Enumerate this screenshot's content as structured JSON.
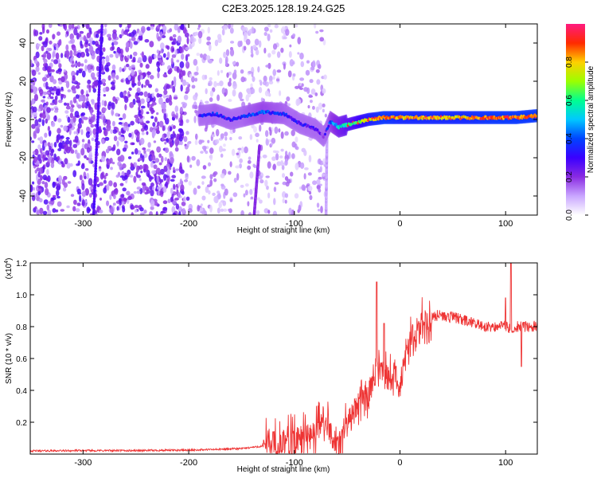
{
  "title": "C2E3.2025.128.19.24.G25",
  "colors": {
    "snr_line": "#ee3333",
    "colormap": [
      "#ffffff",
      "#c9a6ff",
      "#8a2be2",
      "#3a00ff",
      "#0044ff",
      "#00c8ff",
      "#00ff90",
      "#9cff00",
      "#ffd000",
      "#ff2a00",
      "#ff1a80"
    ]
  },
  "chart_data": [
    {
      "type": "heatmap",
      "name": "spectrogram",
      "title": "C2E3.2025.128.19.24.G25",
      "xlabel": "Height of straight line (km)",
      "ylabel": "Frequency (Hz)",
      "xlim": [
        -350,
        130
      ],
      "ylim": [
        -50,
        50
      ],
      "xticks": [
        -300,
        -200,
        -100,
        0,
        100
      ],
      "xtick_labels": [
        "-300",
        "-200",
        "-100",
        "0",
        "100"
      ],
      "yticks": [
        -40,
        -20,
        0,
        20,
        40
      ],
      "ytick_labels": [
        "-40",
        "-20",
        "0",
        "20",
        "40"
      ],
      "colorbar": {
        "label": "Normalized spectral amplitude",
        "range": [
          0,
          1
        ],
        "ticks": [
          0.0,
          0.2,
          0.4,
          0.6,
          0.8
        ],
        "tick_labels": [
          "0.0",
          "0.2",
          "0.4",
          "0.6",
          "0.8"
        ]
      },
      "noise_region_end_km": -200,
      "sparse_noise_end_km": -70,
      "streaks": [
        {
          "x_start": -290,
          "x_end": -282,
          "y_start": -50,
          "y_end": 50,
          "amp": 0.25
        },
        {
          "x_start": -138,
          "x_end": -133,
          "y_start": -50,
          "y_end": -14,
          "amp": 0.18
        },
        {
          "x_start": -70,
          "x_end": -69,
          "y_start": -50,
          "y_end": -5,
          "amp": 0.08
        }
      ],
      "ridge": [
        {
          "x": -190,
          "f": 2,
          "amp": 0.3
        },
        {
          "x": -175,
          "f": 3,
          "amp": 0.35
        },
        {
          "x": -160,
          "f": 0,
          "amp": 0.3
        },
        {
          "x": -145,
          "f": 2,
          "amp": 0.35
        },
        {
          "x": -130,
          "f": 4,
          "amp": 0.4
        },
        {
          "x": -110,
          "f": 3,
          "amp": 0.35
        },
        {
          "x": -95,
          "f": -2,
          "amp": 0.3
        },
        {
          "x": -80,
          "f": -5,
          "amp": 0.25
        },
        {
          "x": -72,
          "f": -9,
          "amp": 0.22
        },
        {
          "x": -66,
          "f": -1,
          "amp": 0.4
        },
        {
          "x": -58,
          "f": -4,
          "amp": 0.5
        },
        {
          "x": -45,
          "f": -2,
          "amp": 0.6
        },
        {
          "x": -30,
          "f": 0,
          "amp": 0.75
        },
        {
          "x": -15,
          "f": 1,
          "amp": 0.85
        },
        {
          "x": 0,
          "f": 1,
          "amp": 0.8
        },
        {
          "x": 30,
          "f": 1,
          "amp": 0.8
        },
        {
          "x": 60,
          "f": 1,
          "amp": 0.8
        },
        {
          "x": 90,
          "f": 1,
          "amp": 0.85
        },
        {
          "x": 110,
          "f": 1,
          "amp": 0.85
        },
        {
          "x": 130,
          "f": 2,
          "amp": 0.85
        }
      ]
    },
    {
      "type": "line",
      "name": "snr",
      "xlabel": "Height of straight line (km)",
      "ylabel": "SNR (10 * v/v)",
      "yscale_label": "(x10",
      "yscale_exponent": "4",
      "yscale_suffix": ")",
      "xlim": [
        -350,
        130
      ],
      "ylim": [
        0,
        1.2
      ],
      "xticks": [
        -300,
        -200,
        -100,
        0,
        100
      ],
      "xtick_labels": [
        "-300",
        "-200",
        "-100",
        "0",
        "100"
      ],
      "yticks": [
        0.2,
        0.4,
        0.6,
        0.8,
        1.0,
        1.2
      ],
      "ytick_labels": [
        "0.2",
        "0.4",
        "0.6",
        "0.8",
        "1.0",
        "1.2"
      ],
      "series": [
        {
          "name": "SNR",
          "x": [
            -350,
            -300,
            -250,
            -200,
            -170,
            -150,
            -130,
            -122,
            -118,
            -110,
            -100,
            -90,
            -80,
            -75,
            -70,
            -65,
            -60,
            -55,
            -50,
            -45,
            -40,
            -35,
            -30,
            -25,
            -20,
            -15,
            -10,
            -5,
            0,
            5,
            10,
            15,
            20,
            25,
            30,
            35,
            40,
            45,
            50,
            55,
            60,
            65,
            70,
            75,
            80,
            85,
            90,
            95,
            100,
            105,
            110,
            115,
            120,
            125,
            130
          ],
          "values": [
            0.02,
            0.022,
            0.022,
            0.025,
            0.03,
            0.035,
            0.05,
            0.09,
            0.06,
            0.06,
            0.08,
            0.1,
            0.13,
            0.22,
            0.18,
            0.12,
            0.08,
            0.05,
            0.18,
            0.25,
            0.32,
            0.4,
            0.35,
            0.5,
            0.55,
            0.5,
            0.45,
            0.5,
            0.42,
            0.65,
            0.72,
            0.75,
            0.8,
            0.84,
            0.86,
            0.87,
            0.87,
            0.86,
            0.86,
            0.85,
            0.84,
            0.83,
            0.82,
            0.81,
            0.8,
            0.8,
            0.8,
            0.81,
            0.8,
            0.79,
            0.8,
            0.8,
            0.8,
            0.8,
            0.81
          ],
          "spikes": [
            {
              "x": -120,
              "value": 0.14
            },
            {
              "x": -45,
              "value": 0.22
            },
            {
              "x": -22,
              "value": 1.08
            },
            {
              "x": -15,
              "value": 0.82
            },
            {
              "x": 100,
              "value": 0.98
            },
            {
              "x": 105,
              "value": 1.2
            },
            {
              "x": 115,
              "value": 0.55
            }
          ]
        }
      ]
    }
  ]
}
